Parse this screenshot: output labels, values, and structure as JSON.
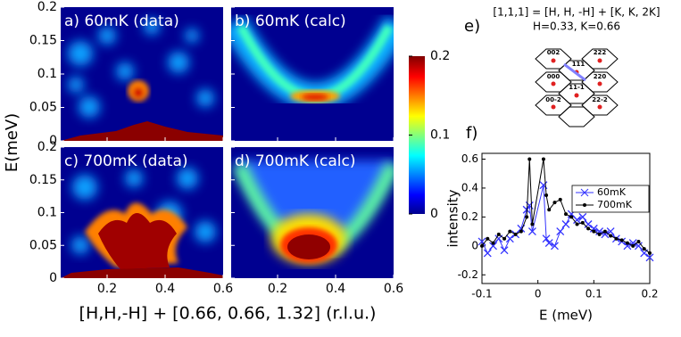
{
  "chart_data": [
    {
      "type": "heatmap",
      "panels": [
        "a) 60mK (data)",
        "b) 60mK (calc)",
        "c) 700mK (data)",
        "d) 700mK (calc)"
      ],
      "xlabel": "[H,H,-H] + [0.66, 0.66, 1.32] (r.l.u.)",
      "ylabel": "E(meV)",
      "xlim": [
        0.04,
        0.6
      ],
      "xticks": [
        0.2,
        0.4,
        0.6
      ],
      "ylim": [
        0,
        0.2
      ],
      "yticks": [
        0,
        0.05,
        0.1,
        0.15,
        0.2
      ],
      "colorbar": {
        "lim": [
          0,
          0.2
        ],
        "ticks": [
          0,
          0.1,
          0.2
        ]
      }
    },
    {
      "type": "line",
      "label": "f)",
      "xlabel": "E (meV)",
      "ylabel": "intensity",
      "x": [
        -0.1,
        -0.09,
        -0.08,
        -0.07,
        -0.06,
        -0.05,
        -0.04,
        -0.03,
        -0.02,
        -0.015,
        -0.01,
        0.01,
        0.015,
        0.02,
        0.03,
        0.04,
        0.05,
        0.06,
        0.07,
        0.08,
        0.09,
        0.1,
        0.11,
        0.12,
        0.13,
        0.14,
        0.15,
        0.16,
        0.17,
        0.18,
        0.19,
        0.2
      ],
      "series": [
        {
          "name": "60mK",
          "color": "#3333ff",
          "marker": "x",
          "values": [
            0.03,
            -0.05,
            0.0,
            0.05,
            -0.03,
            0.05,
            0.08,
            0.12,
            0.25,
            0.28,
            0.1,
            0.42,
            0.05,
            0.02,
            0.0,
            0.1,
            0.15,
            0.22,
            0.18,
            0.2,
            0.15,
            0.12,
            0.1,
            0.08,
            0.1,
            0.05,
            0.03,
            0.0,
            0.02,
            0.0,
            -0.05,
            -0.08
          ]
        },
        {
          "name": "700mK",
          "color": "#000000",
          "marker": "o",
          "values": [
            0.0,
            0.05,
            0.02,
            0.08,
            0.05,
            0.1,
            0.08,
            0.1,
            0.2,
            0.6,
            0.15,
            0.6,
            0.35,
            0.25,
            0.3,
            0.32,
            0.22,
            0.2,
            0.15,
            0.16,
            0.12,
            0.1,
            0.08,
            0.1,
            0.07,
            0.05,
            0.04,
            0.02,
            0.0,
            0.03,
            -0.02,
            -0.05
          ]
        }
      ],
      "xlim": [
        -0.1,
        0.2
      ],
      "xticks": [
        -0.1,
        0,
        0.1,
        0.2
      ],
      "ylim": [
        -0.26,
        0.64
      ],
      "yticks": [
        -0.2,
        0,
        0.2,
        0.4,
        0.6
      ],
      "legend": "upper right"
    }
  ],
  "diagram": {
    "label": "e)",
    "title": "[1,1,1] = [H, H, -H] + [K, K, 2K]",
    "subtitle": "H=0.33, K=0.66",
    "hex_labels": [
      "002",
      "222",
      "111",
      "000",
      "220",
      "11-1",
      "00-2",
      "22-2"
    ]
  }
}
